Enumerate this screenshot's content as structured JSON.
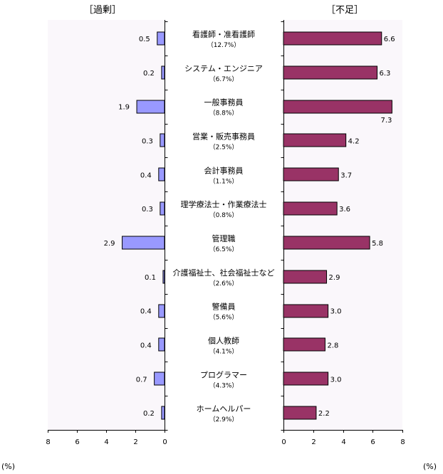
{
  "chart_data": [
    {
      "type": "bar",
      "orientation": "horizontal",
      "direction": "reversed",
      "title": "［過剰］",
      "unit": "(%)",
      "categories": [
        "看護師・准看護師",
        "システム・エンジニア",
        "一般事務員",
        "営業・販売事務員",
        "会計事務員",
        "理学療法士・作業療法士",
        "管理職",
        "介護福祉士、社会福祉士など",
        "警備員",
        "個人教師",
        "プログラマー",
        "ホームヘルパー"
      ],
      "values": [
        0.5,
        0.2,
        1.9,
        0.3,
        0.4,
        0.3,
        2.9,
        0.1,
        0.4,
        0.4,
        0.7,
        0.2
      ],
      "value_labels": [
        "0.5",
        "0.2",
        "1.9",
        "0.3",
        "0.4",
        "0.3",
        "2.9",
        "0.1",
        "0.4",
        "0.4",
        "0.7",
        "0.2"
      ],
      "xlim": [
        0,
        8
      ],
      "ticks": [
        "8",
        "6",
        "4",
        "2",
        "0"
      ],
      "color": "#9999ff"
    },
    {
      "type": "bar",
      "orientation": "horizontal",
      "title": "［不足］",
      "unit": "(%)",
      "categories": [
        "看護師・准看護師",
        "システム・エンジニア",
        "一般事務員",
        "営業・販売事務員",
        "会計事務員",
        "理学療法士・作業療法士",
        "管理職",
        "介護福祉士、社会福祉士など",
        "警備員",
        "個人教師",
        "プログラマー",
        "ホームヘルパー"
      ],
      "values": [
        6.6,
        6.3,
        7.3,
        4.2,
        3.7,
        3.6,
        5.8,
        2.9,
        3.0,
        2.8,
        3.0,
        2.2
      ],
      "value_labels": [
        "6.6",
        "6.3",
        "7.3",
        "4.2",
        "3.7",
        "3.6",
        "5.8",
        "2.9",
        "3.0",
        "2.8",
        "3.0",
        "2.2"
      ],
      "xlim": [
        0,
        8
      ],
      "ticks": [
        "0",
        "2",
        "4",
        "6",
        "8"
      ],
      "color": "#993366"
    }
  ],
  "categories": [
    {
      "name": "看護師・准看護師",
      "share": "（12.7%）"
    },
    {
      "name": "システム・エンジニア",
      "share": "（6.7%）"
    },
    {
      "name": "一般事務員",
      "share": "（8.8%）"
    },
    {
      "name": "営業・販売事務員",
      "share": "（2.5%）"
    },
    {
      "name": "会計事務員",
      "share": "（1.1%）"
    },
    {
      "name": "理学療法士・作業療法士",
      "share": "（0.8%）"
    },
    {
      "name": "管理職",
      "share": "（6.5%）"
    },
    {
      "name": "介護福祉士、社会福祉士など",
      "share": "（2.6%）"
    },
    {
      "name": "警備員",
      "share": "（5.6%）"
    },
    {
      "name": "個人教師",
      "share": "（4.1%）"
    },
    {
      "name": "プログラマー",
      "share": "（4.3%）"
    },
    {
      "name": "ホームヘルパー",
      "share": "（2.9%）"
    }
  ],
  "colors": {
    "surplus": "#9999ff",
    "shortage": "#993366"
  }
}
